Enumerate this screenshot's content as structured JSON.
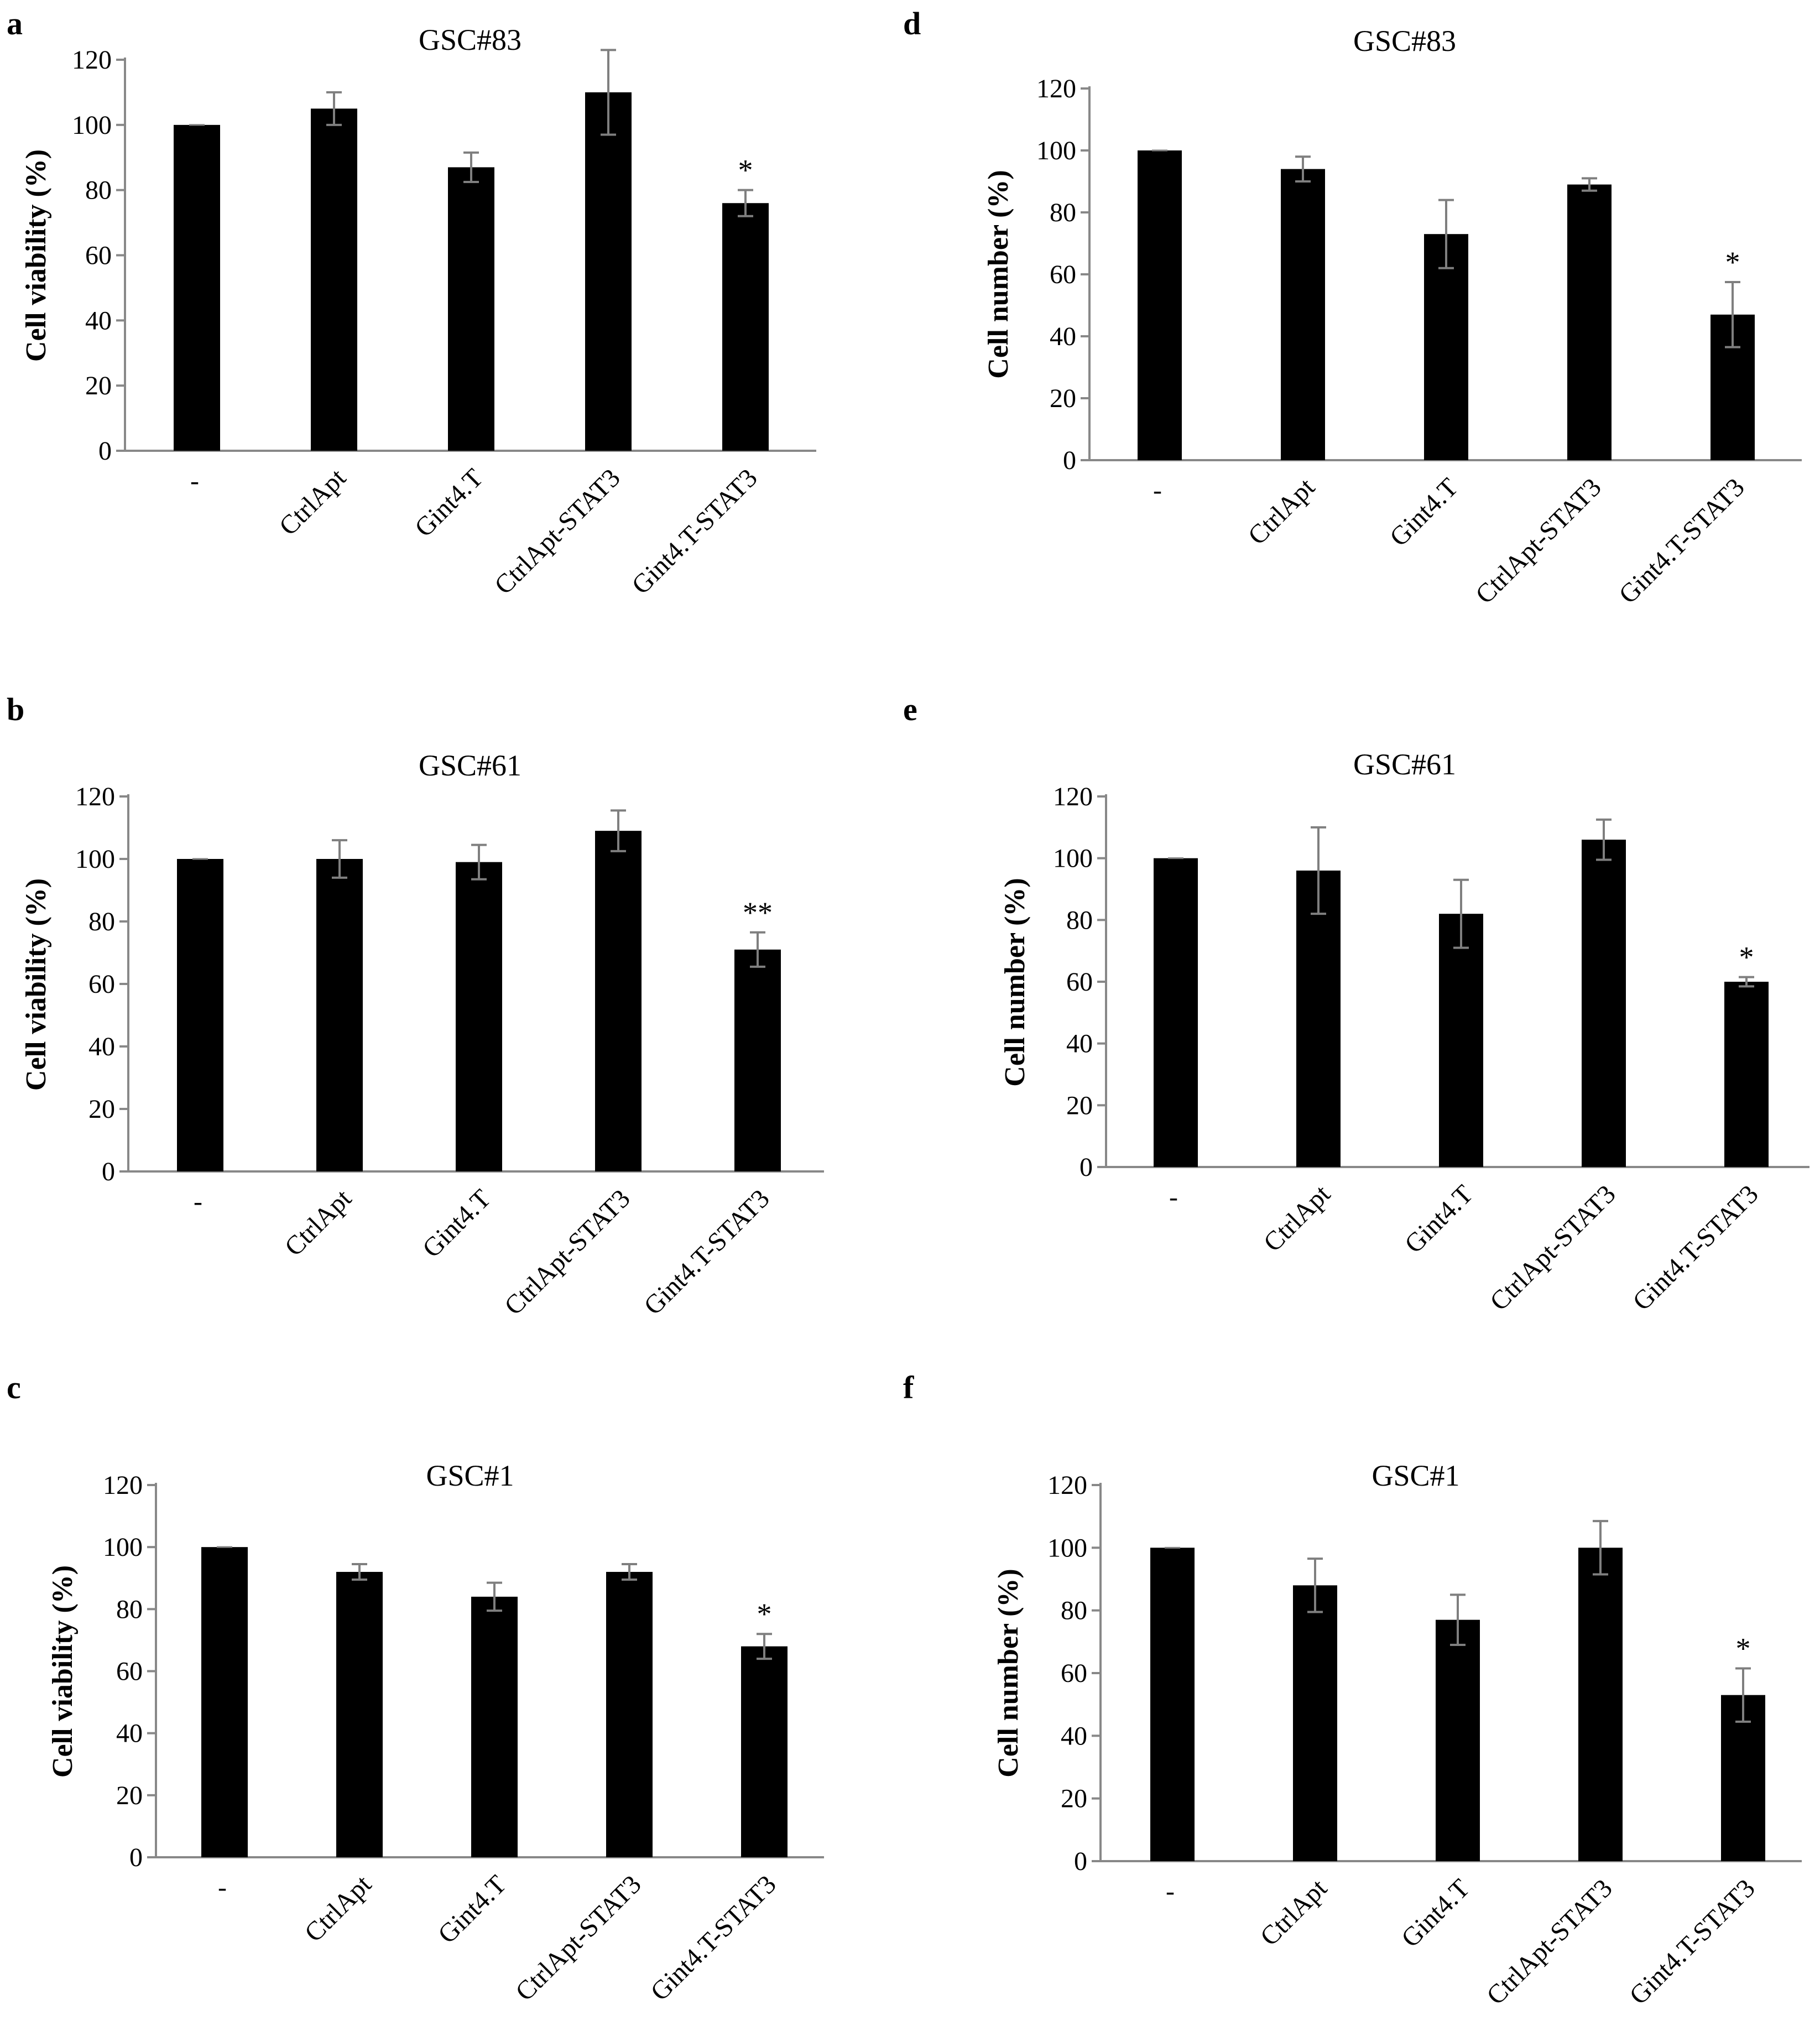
{
  "colors": {
    "bar": "#000000",
    "axis": "#888888",
    "error": "#7f7f7f"
  },
  "chart_data": [
    {
      "panel": "a",
      "type": "bar",
      "title": "GSC#83",
      "xlabel": "",
      "ylabel": "Cell viability (%)",
      "ylim": [
        0,
        120
      ],
      "yticks": [
        0,
        20,
        40,
        60,
        80,
        100,
        120
      ],
      "categories": [
        "-",
        "CtrlApt",
        "Gint4.T",
        "CtrlApt-STAT3",
        "Gint4.T-STAT3"
      ],
      "values": [
        100,
        105,
        87,
        110,
        76
      ],
      "errors": [
        0.5,
        5,
        4.5,
        13,
        4
      ],
      "significance": [
        "",
        "",
        "",
        "",
        "*"
      ]
    },
    {
      "panel": "b",
      "type": "bar",
      "title": "GSC#61",
      "xlabel": "",
      "ylabel": "Cell viability (%)",
      "ylim": [
        0,
        120
      ],
      "yticks": [
        0,
        20,
        40,
        60,
        80,
        100,
        120
      ],
      "categories": [
        "-",
        "CtrlApt",
        "Gint4.T",
        "CtrlApt-STAT3",
        "Gint4.T-STAT3"
      ],
      "values": [
        100,
        100,
        99,
        109,
        71
      ],
      "errors": [
        0.5,
        6,
        5.5,
        6.5,
        5.5
      ],
      "significance": [
        "",
        "",
        "",
        "",
        "**"
      ]
    },
    {
      "panel": "c",
      "type": "bar",
      "title": "GSC#1",
      "xlabel": "",
      "ylabel": "Cell viability (%)",
      "ylim": [
        0,
        120
      ],
      "yticks": [
        0,
        20,
        40,
        60,
        80,
        100,
        120
      ],
      "categories": [
        "-",
        "CtrlApt",
        "Gint4.T",
        "CtrlApt-STAT3",
        "Gint4.T-STAT3"
      ],
      "values": [
        100,
        92,
        84,
        92,
        68
      ],
      "errors": [
        0.5,
        2.5,
        4.5,
        2.5,
        4
      ],
      "significance": [
        "",
        "",
        "",
        "",
        "*"
      ]
    },
    {
      "panel": "d",
      "type": "bar",
      "title": "GSC#83",
      "xlabel": "",
      "ylabel": "Cell number (%)",
      "ylim": [
        0,
        120
      ],
      "yticks": [
        0,
        20,
        40,
        60,
        80,
        100,
        120
      ],
      "categories": [
        "-",
        "CtrlApt",
        "Gint4.T",
        "CtrlApt-STAT3",
        "Gint4.T-STAT3"
      ],
      "values": [
        100,
        94,
        73,
        89,
        47
      ],
      "errors": [
        0.5,
        4,
        11,
        2,
        10.5
      ],
      "significance": [
        "",
        "",
        "",
        "",
        "*"
      ]
    },
    {
      "panel": "e",
      "type": "bar",
      "title": "GSC#61",
      "xlabel": "",
      "ylabel": "Cell number (%)",
      "ylim": [
        0,
        120
      ],
      "yticks": [
        0,
        20,
        40,
        60,
        80,
        100,
        120
      ],
      "categories": [
        "-",
        "CtrlApt",
        "Gint4.T",
        "CtrlApt-STAT3",
        "Gint4.T-STAT3"
      ],
      "values": [
        100,
        96,
        82,
        106,
        60
      ],
      "errors": [
        0.5,
        14,
        11,
        6.5,
        1.5
      ],
      "significance": [
        "",
        "",
        "",
        "",
        "*"
      ]
    },
    {
      "panel": "f",
      "type": "bar",
      "title": "GSC#1",
      "xlabel": "",
      "ylabel": "Cell number (%)",
      "ylim": [
        0,
        120
      ],
      "yticks": [
        0,
        20,
        40,
        60,
        80,
        100,
        120
      ],
      "categories": [
        "-",
        "CtrlApt",
        "Gint4.T",
        "CtrlApt-STAT3",
        "Gint4.T-STAT3"
      ],
      "values": [
        100,
        88,
        77,
        100,
        53
      ],
      "errors": [
        0.5,
        8.5,
        8,
        8.5,
        8.5
      ],
      "significance": [
        "",
        "",
        "",
        "",
        "*"
      ]
    }
  ]
}
